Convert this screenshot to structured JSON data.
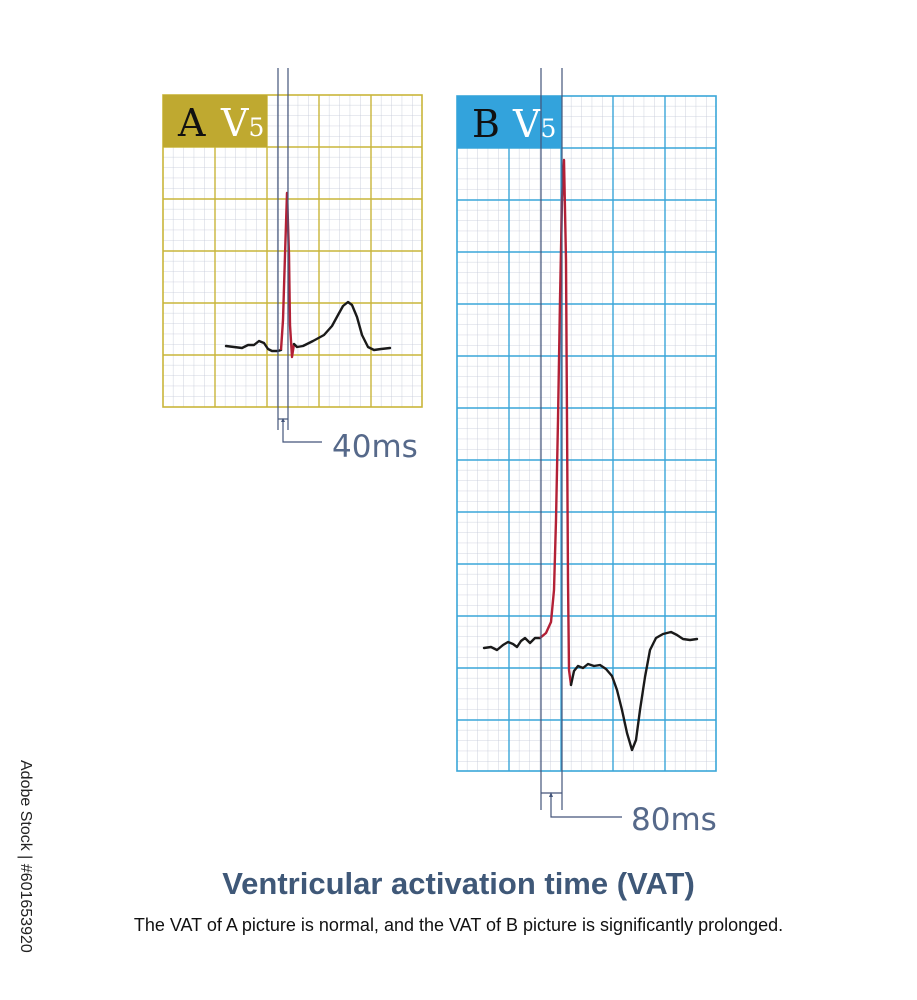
{
  "panel_a": {
    "letter": "A",
    "lead": "V",
    "lead_sub": "5",
    "interval_label": "40ms",
    "grid_color": "#c9b53a",
    "header_color": "#bfa930"
  },
  "panel_b": {
    "letter": "B",
    "lead": "V",
    "lead_sub": "5",
    "interval_label": "80ms",
    "grid_color": "#3aa6d8",
    "header_color": "#33a3dc"
  },
  "colors": {
    "fine_grid": "#c2c8d6",
    "ecg_trace": "#1a1a1a",
    "upstroke": "#b32036",
    "marker_line": "#44557a",
    "label_text": "#56698a"
  },
  "title": "Ventricular activation time (VAT)",
  "subtitle": "The VAT of A picture is normal, and the VAT of B picture is significantly prolonged.",
  "watermark": "Adobe Stock | #601653920"
}
